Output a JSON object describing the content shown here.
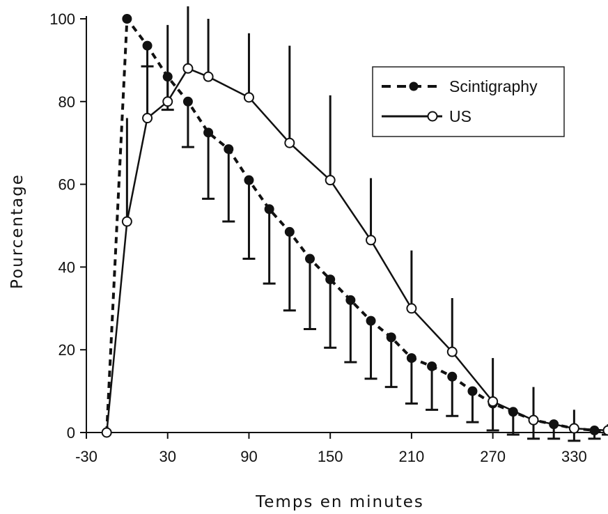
{
  "chart_data": {
    "type": "line",
    "title": "",
    "xlabel": "Temps en minutes",
    "ylabel": "Pourcentage",
    "xlim": [
      -30,
      355
    ],
    "ylim": [
      0,
      100
    ],
    "x_ticks": [
      -30,
      30,
      90,
      150,
      210,
      270,
      330
    ],
    "y_ticks": [
      0,
      20,
      40,
      60,
      80,
      100
    ],
    "grid": false,
    "legend_position": "top-right",
    "series": [
      {
        "name": "Scintigraphy",
        "style": "dashed",
        "marker": "filled-circle",
        "x": [
          -15,
          0,
          15,
          30,
          45,
          60,
          75,
          90,
          105,
          120,
          135,
          150,
          165,
          180,
          195,
          210,
          225,
          240,
          255,
          270,
          285,
          300,
          315,
          330,
          345,
          355
        ],
        "y": [
          0,
          100,
          93.5,
          86,
          80,
          72.5,
          68.5,
          61,
          54,
          48.5,
          42,
          37,
          32,
          27,
          23,
          18,
          16,
          13.5,
          10,
          7,
          5,
          3,
          2,
          1,
          0.5,
          0.5
        ],
        "error_minus": [
          0,
          0,
          5,
          8,
          11,
          16,
          17.5,
          19,
          18,
          19,
          17,
          16.5,
          15,
          14,
          12,
          11,
          10.5,
          9.5,
          7.5,
          6.5,
          5.5,
          4.5,
          3.5,
          3,
          2,
          1
        ]
      },
      {
        "name": "US",
        "style": "solid",
        "marker": "open-circle",
        "x": [
          -15,
          0,
          15,
          30,
          45,
          60,
          90,
          120,
          150,
          180,
          210,
          240,
          270,
          300,
          330,
          355
        ],
        "y": [
          0,
          51,
          76,
          80,
          88,
          86,
          81,
          70,
          61,
          46.5,
          30,
          19.5,
          7.5,
          3,
          1,
          0.5
        ],
        "error_plus": [
          0,
          25,
          12.5,
          18.5,
          15,
          14,
          15.5,
          23.5,
          20.5,
          15,
          14,
          13,
          10.5,
          8,
          4.5,
          1.5
        ]
      }
    ]
  }
}
